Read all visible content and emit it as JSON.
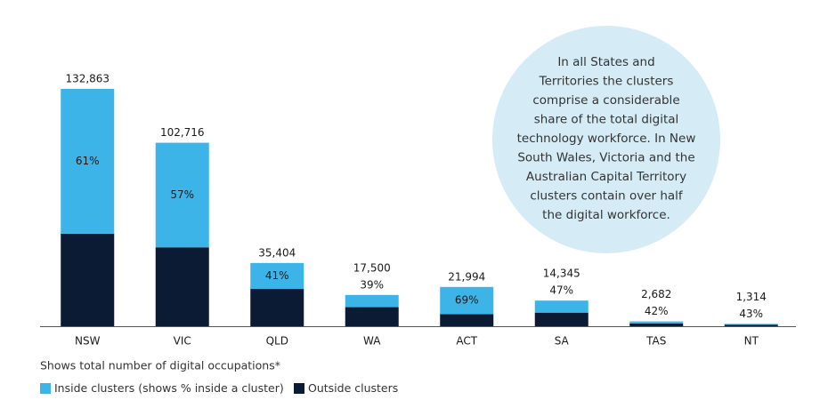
{
  "chart_data": {
    "type": "stacked-bar",
    "categories": [
      "NSW",
      "VIC",
      "QLD",
      "WA",
      "ACT",
      "SA",
      "TAS",
      "NT"
    ],
    "series": [
      {
        "name": "Inside clusters (shows % inside a cluster)",
        "color": "#3db4e8",
        "values": [
          81046,
          58548,
          14516,
          6825,
          15176,
          6742,
          1126,
          565
        ]
      },
      {
        "name": "Outside clusters",
        "color": "#0b1b33",
        "values": [
          51817,
          44168,
          20888,
          10675,
          6818,
          7603,
          1556,
          749
        ]
      }
    ],
    "totals": [
      132863,
      102716,
      35404,
      17500,
      21994,
      14345,
      2682,
      1314
    ],
    "total_labels": [
      "132,863",
      "102,716",
      "35,404",
      "17,500",
      "21,994",
      "14,345",
      "2,682",
      "1,314"
    ],
    "inside_share": [
      61,
      57,
      41,
      39,
      69,
      47,
      42,
      43
    ],
    "inside_share_labels": [
      "61%",
      "57%",
      "41%",
      "39%",
      "69%",
      "47%",
      "42%",
      "43%"
    ],
    "note": "Shows total number of digital occupations*",
    "annotation": [
      "In all States and",
      "Territories the clusters",
      "comprise a considerable",
      "share of the total digital",
      "technology workforce. In New",
      "South Wales, Victoria and the",
      "Australian Capital Territory",
      "clusters contain over half",
      "the digital workforce."
    ],
    "annotation_color": "#d5ecf7"
  }
}
